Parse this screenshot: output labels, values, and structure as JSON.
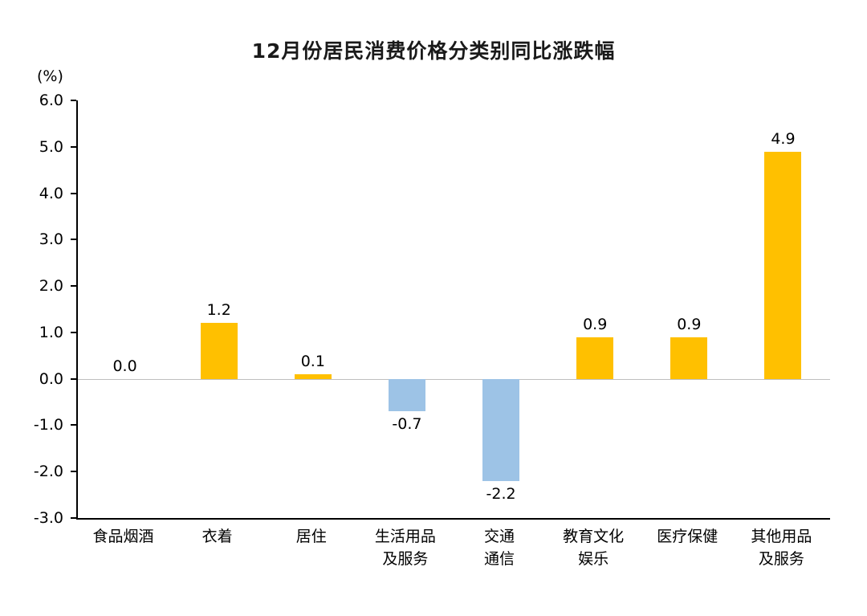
{
  "title": "12月份居民消费价格分类别同比涨跌幅",
  "colors": {
    "positive_bar": "#FFC000",
    "negative_bar": "#9DC3E6",
    "axis": "#000000",
    "zero_line": "#BFBFBF"
  },
  "chart_data": {
    "type": "bar",
    "title": "12月份居民消费价格分类别同比涨跌幅",
    "xlabel": "",
    "ylabel": "(%)",
    "categories": [
      "食品烟酒",
      "衣着",
      "居住",
      "生活用品\n及服务",
      "交通\n通信",
      "教育文化\n娱乐",
      "医疗保健",
      "其他用品\n及服务"
    ],
    "values": [
      0.0,
      1.2,
      0.1,
      -0.7,
      -2.2,
      0.9,
      0.9,
      4.9
    ],
    "value_labels": [
      "0.0",
      "1.2",
      "0.1",
      "-0.7",
      "-2.2",
      "0.9",
      "0.9",
      "4.9"
    ],
    "ylim": [
      -3.0,
      6.0
    ],
    "yticks": [
      6.0,
      5.0,
      4.0,
      3.0,
      2.0,
      1.0,
      0.0,
      -1.0,
      -2.0,
      -3.0
    ],
    "grid": false,
    "legend": false,
    "legend_position": "none"
  }
}
